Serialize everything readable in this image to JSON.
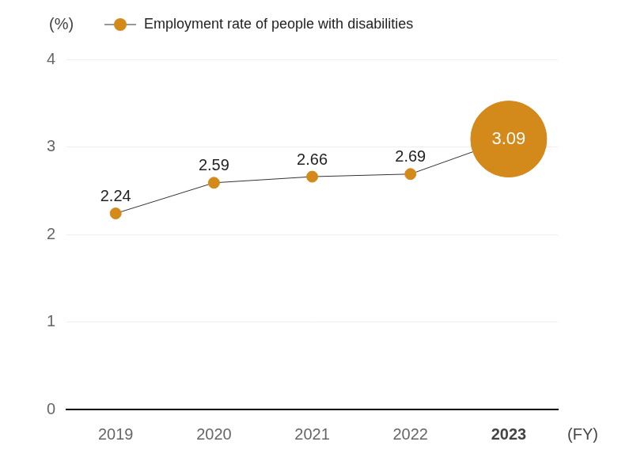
{
  "chart_data": {
    "type": "line",
    "categories": [
      "2019",
      "2020",
      "2021",
      "2022",
      "2023"
    ],
    "series": [
      {
        "name": "Employment rate of people with disabilities",
        "color": "#d4891b",
        "values": [
          2.24,
          2.59,
          2.66,
          2.69,
          3.09
        ]
      }
    ],
    "y_label": "(%)",
    "x_label": "(FY)",
    "ylim": [
      0,
      4
    ],
    "yticks": [
      0,
      1,
      2,
      3,
      4
    ],
    "grid": true,
    "data_labels": true,
    "legend": "top"
  }
}
